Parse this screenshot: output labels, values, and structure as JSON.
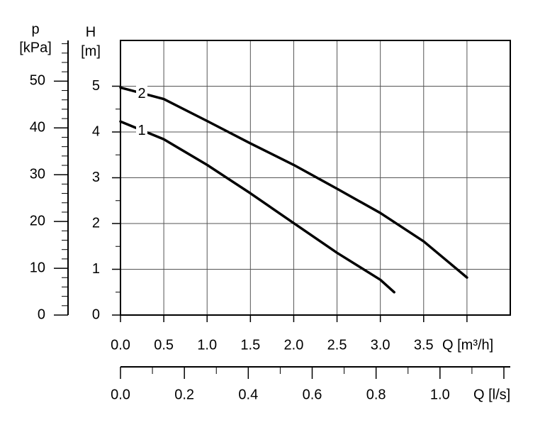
{
  "chart_data": {
    "type": "line",
    "y_label": "H",
    "y_unit": "[m]",
    "y2_label": "p",
    "y2_unit": "[kPa]",
    "x_label": "Q [m³/h]",
    "x2_label": "Q [l/s]",
    "xlim": [
      0,
      4.5
    ],
    "xticks": [
      {
        "value": 0,
        "label": "0.0"
      },
      0.5,
      {
        "value": 1,
        "label": "1.0"
      },
      1.5,
      {
        "value": 2,
        "label": "2.0"
      },
      2.5,
      {
        "value": 3,
        "label": "3.0"
      },
      3.5
    ],
    "ylim": [
      0,
      6
    ],
    "yticks": [
      0,
      1,
      2,
      3,
      4,
      5
    ],
    "y2lim": [
      0,
      58.7
    ],
    "y2ticks": [
      0,
      10,
      20,
      30,
      40,
      50
    ],
    "x2lim": [
      0,
      1.22
    ],
    "x2ticks": [
      {
        "value": 0,
        "label": "0.0"
      },
      0.2,
      0.4,
      0.6,
      0.8,
      {
        "value": 1,
        "label": "1.0"
      }
    ],
    "grid": true,
    "series": [
      {
        "name": "1",
        "color": "#000000",
        "x": [
          0,
          0.5,
          1.0,
          1.5,
          2.0,
          2.5,
          3.0,
          3.16
        ],
        "values": [
          4.23,
          3.84,
          3.28,
          2.66,
          2.01,
          1.36,
          0.77,
          0.5
        ]
      },
      {
        "name": "2",
        "color": "#000000",
        "x": [
          0,
          0.5,
          1.0,
          1.5,
          2.0,
          2.5,
          3.0,
          3.5,
          4.0
        ],
        "values": [
          4.97,
          4.72,
          4.24,
          3.75,
          3.28,
          2.76,
          2.23,
          1.61,
          0.82
        ]
      }
    ]
  }
}
